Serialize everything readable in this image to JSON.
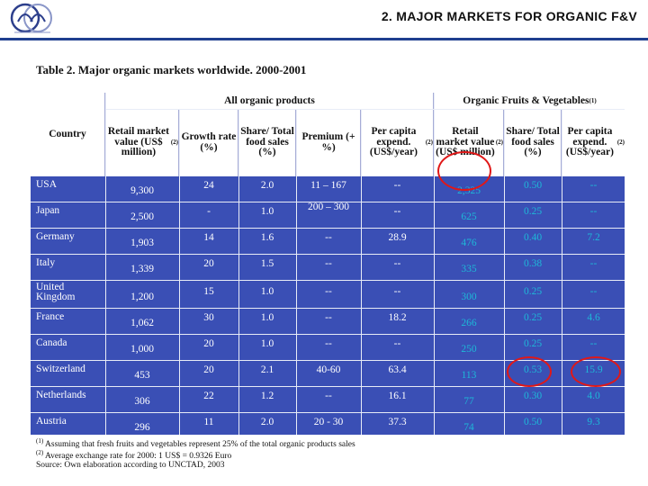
{
  "header": {
    "title": "2. MAJOR MARKETS FOR ORGANIC F&V"
  },
  "table": {
    "caption": "Table 2.  Major organic markets worldwide.  2000-2001",
    "group_headers": {
      "all": "All organic products",
      "fv": "Organic Fruits & Vegetables",
      "fv_note": "(1)"
    },
    "columns": {
      "country": "Country",
      "retail": "Retail market value (US$ million)",
      "retail_note": "(2)",
      "growth": "Growth rate (%)",
      "share": "Share/ Total food sales (%)",
      "premium": "Premium (+ %)",
      "percap": "Per capita expend. (US$/year)",
      "percap_note": "(2)",
      "fv_retail": "Retail market value (US$ million)",
      "fv_retail_note": "(2)",
      "fv_share": "Share/ Total food sales (%)",
      "fv_percap": "Per capita expend. (US$/year)",
      "fv_percap_note": "(2)"
    },
    "rows": [
      {
        "country": "USA",
        "retail": "9,300",
        "growth": "24",
        "share": "2.0",
        "premium": "11 – 167",
        "percap": "--",
        "fv_retail": "2,325",
        "fv_share": "0.50",
        "fv_percap": "--"
      },
      {
        "country": "Japan",
        "retail": "2,500",
        "growth": "-",
        "share": "1.0",
        "premium": "200 – 300",
        "percap": "--",
        "fv_retail": "625",
        "fv_share": "0.25",
        "fv_percap": "--"
      },
      {
        "country": "Germany",
        "retail": "1,903",
        "growth": "14",
        "share": "1.6",
        "premium": "--",
        "percap": "28.9",
        "fv_retail": "476",
        "fv_share": "0.40",
        "fv_percap": "7.2"
      },
      {
        "country": "Italy",
        "retail": "1,339",
        "growth": "20",
        "share": "1.5",
        "premium": "--",
        "percap": "--",
        "fv_retail": "335",
        "fv_share": "0.38",
        "fv_percap": "--"
      },
      {
        "country": "United Kingdom",
        "retail": "1,200",
        "growth": "15",
        "share": "1.0",
        "premium": "--",
        "percap": "--",
        "fv_retail": "300",
        "fv_share": "0.25",
        "fv_percap": "--"
      },
      {
        "country": "France",
        "retail": "1,062",
        "growth": "30",
        "share": "1.0",
        "premium": "--",
        "percap": "18.2",
        "fv_retail": "266",
        "fv_share": "0.25",
        "fv_percap": "4.6"
      },
      {
        "country": "Canada",
        "retail": "1,000",
        "growth": "20",
        "share": "1.0",
        "premium": "--",
        "percap": "--",
        "fv_retail": "250",
        "fv_share": "0.25",
        "fv_percap": "--"
      },
      {
        "country": "Switzerland",
        "retail": "453",
        "growth": "20",
        "share": "2.1",
        "premium": "40-60",
        "percap": "63.4",
        "fv_retail": "113",
        "fv_share": "0.53",
        "fv_percap": "15.9"
      },
      {
        "country": "Netherlands",
        "retail": "306",
        "growth": "22",
        "share": "1.2",
        "premium": "--",
        "percap": "16.1",
        "fv_retail": "77",
        "fv_share": "0.30",
        "fv_percap": "4.0"
      },
      {
        "country": "Austria",
        "retail": "296",
        "growth": "11",
        "share": "2.0",
        "premium": "20 - 30",
        "percap": "37.3",
        "fv_retail": "74",
        "fv_share": "0.50",
        "fv_percap": "9.3"
      }
    ]
  },
  "notes": {
    "n1_mark": "(1)",
    "n1": " Assuming that fresh fruits and vegetables represent 25% of the total organic products sales",
    "n2_mark": "(2)",
    "n2": " Average exchange rate for 2000: 1 US$ = 0.9326 Euro",
    "source": "Source:  Own elaboration according to UNCTAD, 2003"
  },
  "colors": {
    "header_rule": "#1f3f8f",
    "table_head": "#a6acd6",
    "table_body": "#3a4fb5",
    "fv_text": "#1eb8d8",
    "highlight": "#e01818"
  }
}
